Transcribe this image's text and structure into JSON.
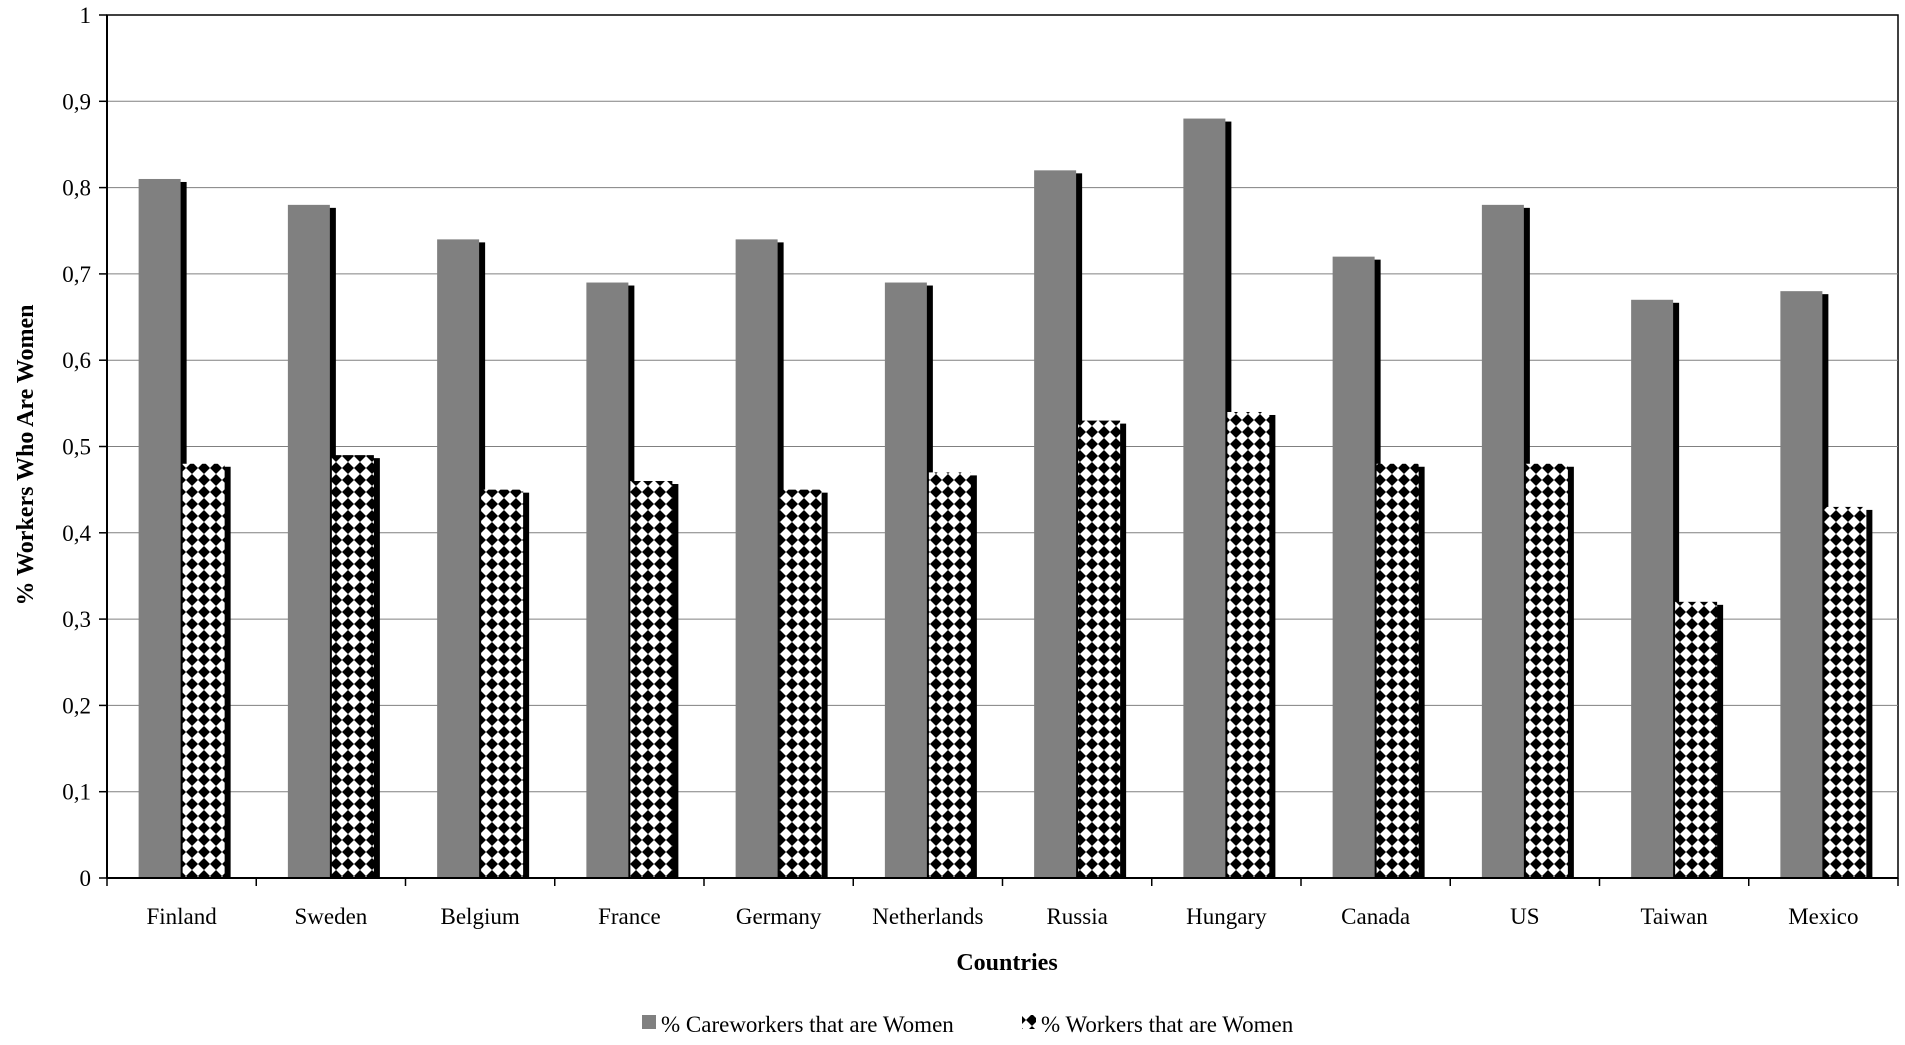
{
  "chart_data": {
    "type": "bar",
    "title": "",
    "xlabel": "Countries",
    "ylabel": "% Workers Who Are Women",
    "categories": [
      "Finland",
      "Sweden",
      "Belgium",
      "France",
      "Germany",
      "Netherlands",
      "Russia",
      "Hungary",
      "Canada",
      "US",
      "Taiwan",
      "Mexico"
    ],
    "series": [
      {
        "name": "% Careworkers that are Women",
        "values": [
          0.81,
          0.78,
          0.74,
          0.69,
          0.74,
          0.69,
          0.82,
          0.88,
          0.72,
          0.78,
          0.67,
          0.68
        ],
        "color": "#808080",
        "pattern": "solid"
      },
      {
        "name": "% Workers that are Women",
        "values": [
          0.48,
          0.49,
          0.45,
          0.46,
          0.45,
          0.47,
          0.53,
          0.54,
          0.48,
          0.48,
          0.32,
          0.43
        ],
        "color": "#000000",
        "pattern": "checkered"
      }
    ],
    "ylim": [
      0,
      1
    ],
    "yticks": [
      "0",
      "0,1",
      "0,2",
      "0,3",
      "0,4",
      "0,5",
      "0,6",
      "0,7",
      "0,8",
      "0,9",
      "1"
    ],
    "grid": true,
    "legend_position": "bottom"
  }
}
